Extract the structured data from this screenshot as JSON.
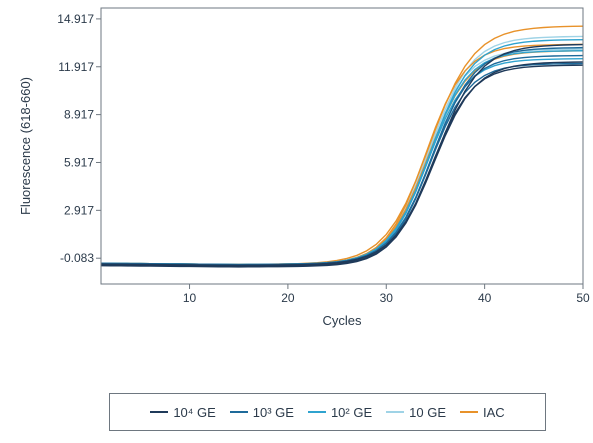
{
  "chart_data": {
    "type": "line",
    "title": "",
    "xlabel": "Cycles",
    "ylabel": "Fluorescence (618-660)",
    "xlim": [
      1,
      50
    ],
    "ylim": [
      -1.7,
      15.6
    ],
    "x_ticks": [
      10,
      20,
      30,
      40,
      50
    ],
    "y_ticks": [
      -0.083,
      2.917,
      5.917,
      8.917,
      11.917,
      14.917
    ],
    "x_tick_labels": [
      "10",
      "20",
      "30",
      "40",
      "50"
    ],
    "y_tick_labels": [
      "-0.083",
      "2.917",
      "5.917",
      "8.917",
      "11.917",
      "14.917"
    ],
    "grid": false,
    "legend_position": "bottom",
    "x": [
      1,
      2,
      3,
      4,
      5,
      6,
      7,
      8,
      9,
      10,
      11,
      12,
      13,
      14,
      15,
      16,
      17,
      18,
      19,
      20,
      21,
      22,
      23,
      24,
      25,
      26,
      27,
      28,
      29,
      30,
      31,
      32,
      33,
      34,
      35,
      36,
      37,
      38,
      39,
      40,
      41,
      42,
      43,
      44,
      45,
      46,
      47,
      48,
      49,
      50
    ],
    "series": [
      {
        "name": "10⁴ GE",
        "color": "#1f3a5a",
        "curves": [
          {
            "baseline": -0.55,
            "plateau": 12.0,
            "midpoint": 34.6,
            "slope": 2.05
          },
          {
            "baseline": -0.5,
            "plateau": 12.2,
            "midpoint": 34.8,
            "slope": 2.1
          },
          {
            "baseline": -0.45,
            "plateau": 13.3,
            "midpoint": 35.1,
            "slope": 2.2
          }
        ]
      },
      {
        "name": "10³ GE",
        "color": "#1e6a9a",
        "curves": [
          {
            "baseline": -0.5,
            "plateau": 12.1,
            "midpoint": 34.4,
            "slope": 2.0
          },
          {
            "baseline": -0.45,
            "plateau": 12.6,
            "midpoint": 34.5,
            "slope": 2.0
          },
          {
            "baseline": -0.4,
            "plateau": 13.1,
            "midpoint": 34.7,
            "slope": 2.1
          }
        ]
      },
      {
        "name": "10² GE",
        "color": "#2fa3cf",
        "curves": [
          {
            "baseline": -0.45,
            "plateau": 12.4,
            "midpoint": 34.2,
            "slope": 2.0
          },
          {
            "baseline": -0.4,
            "plateau": 12.9,
            "midpoint": 34.3,
            "slope": 2.0
          },
          {
            "baseline": -0.4,
            "plateau": 13.6,
            "midpoint": 34.5,
            "slope": 2.1
          }
        ]
      },
      {
        "name": "10 GE",
        "color": "#9fd3e6",
        "curves": [
          {
            "baseline": -0.4,
            "plateau": 13.0,
            "midpoint": 34.1,
            "slope": 2.0
          },
          {
            "baseline": -0.4,
            "plateau": 13.8,
            "midpoint": 34.4,
            "slope": 2.1
          }
        ]
      },
      {
        "name": "IAC",
        "color": "#e8922a",
        "curves": [
          {
            "baseline": -0.4,
            "plateau": 14.45,
            "midpoint": 34.4,
            "slope": 2.25
          },
          {
            "baseline": -0.4,
            "plateau": 13.3,
            "midpoint": 34.0,
            "slope": 2.0
          },
          {
            "baseline": -0.45,
            "plateau": 12.9,
            "midpoint": 34.2,
            "slope": 2.1
          }
        ]
      }
    ]
  },
  "legend": {
    "items": [
      {
        "label": "10⁴ GE",
        "color": "#1f3a5a"
      },
      {
        "label": "10³ GE",
        "color": "#1e6a9a"
      },
      {
        "label": "10² GE",
        "color": "#2fa3cf"
      },
      {
        "label": "10 GE",
        "color": "#9fd3e6"
      },
      {
        "label": "IAC",
        "color": "#e8922a"
      }
    ]
  }
}
